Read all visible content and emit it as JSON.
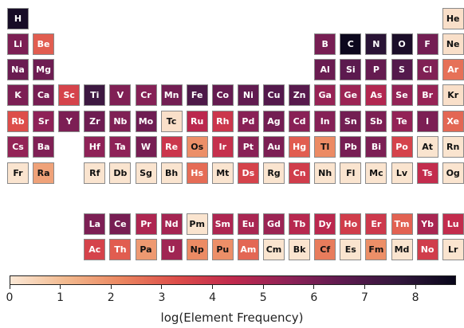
{
  "chart_data": {
    "type": "heatmap",
    "title": "",
    "colorbar": {
      "label": "log(Element Frequency)",
      "min": 0,
      "max": 8.8,
      "ticks": [
        0,
        1,
        2,
        3,
        4,
        5,
        6,
        7,
        8
      ],
      "colormap": [
        "#fbe8d6",
        "#f2b98e",
        "#eb8660",
        "#dd4d4a",
        "#c0294d",
        "#8e2257",
        "#5c1a4f",
        "#32173c",
        "#08061a"
      ]
    },
    "elements": [
      {
        "symbol": "H",
        "row": 1,
        "col": 1,
        "value": 8.4
      },
      {
        "symbol": "He",
        "row": 1,
        "col": 18,
        "value": 0.2
      },
      {
        "symbol": "Li",
        "row": 2,
        "col": 1,
        "value": 5.9
      },
      {
        "symbol": "Be",
        "row": 2,
        "col": 2,
        "value": 3.0
      },
      {
        "symbol": "B",
        "row": 2,
        "col": 13,
        "value": 6.0
      },
      {
        "symbol": "C",
        "row": 2,
        "col": 14,
        "value": 8.7
      },
      {
        "symbol": "N",
        "row": 2,
        "col": 15,
        "value": 7.9
      },
      {
        "symbol": "O",
        "row": 2,
        "col": 16,
        "value": 8.3
      },
      {
        "symbol": "F",
        "row": 2,
        "col": 17,
        "value": 6.1
      },
      {
        "symbol": "Ne",
        "row": 2,
        "col": 18,
        "value": 0.2
      },
      {
        "symbol": "Na",
        "row": 3,
        "col": 1,
        "value": 6.3
      },
      {
        "symbol": "Mg",
        "row": 3,
        "col": 2,
        "value": 6.2
      },
      {
        "symbol": "Al",
        "row": 3,
        "col": 13,
        "value": 6.3
      },
      {
        "symbol": "Si",
        "row": 3,
        "col": 14,
        "value": 6.6
      },
      {
        "symbol": "P",
        "row": 3,
        "col": 15,
        "value": 6.4
      },
      {
        "symbol": "S",
        "row": 3,
        "col": 16,
        "value": 6.8
      },
      {
        "symbol": "Cl",
        "row": 3,
        "col": 17,
        "value": 5.8
      },
      {
        "symbol": "Ar",
        "row": 3,
        "col": 18,
        "value": 2.6
      },
      {
        "symbol": "K",
        "row": 4,
        "col": 1,
        "value": 5.9
      },
      {
        "symbol": "Ca",
        "row": 4,
        "col": 2,
        "value": 6.0
      },
      {
        "symbol": "Sc",
        "row": 4,
        "col": 3,
        "value": 3.6
      },
      {
        "symbol": "Ti",
        "row": 4,
        "col": 4,
        "value": 7.4
      },
      {
        "symbol": "V",
        "row": 4,
        "col": 5,
        "value": 5.8
      },
      {
        "symbol": "Cr",
        "row": 4,
        "col": 6,
        "value": 5.7
      },
      {
        "symbol": "Mn",
        "row": 4,
        "col": 7,
        "value": 6.1
      },
      {
        "symbol": "Fe",
        "row": 4,
        "col": 8,
        "value": 7.0
      },
      {
        "symbol": "Co",
        "row": 4,
        "col": 9,
        "value": 6.4
      },
      {
        "symbol": "Ni",
        "row": 4,
        "col": 10,
        "value": 6.5
      },
      {
        "symbol": "Cu",
        "row": 4,
        "col": 11,
        "value": 6.8
      },
      {
        "symbol": "Zn",
        "row": 4,
        "col": 12,
        "value": 6.7
      },
      {
        "symbol": "Ga",
        "row": 4,
        "col": 13,
        "value": 5.3
      },
      {
        "symbol": "Ge",
        "row": 4,
        "col": 14,
        "value": 5.2
      },
      {
        "symbol": "As",
        "row": 4,
        "col": 15,
        "value": 4.7
      },
      {
        "symbol": "Se",
        "row": 4,
        "col": 16,
        "value": 5.4
      },
      {
        "symbol": "Br",
        "row": 4,
        "col": 17,
        "value": 5.3
      },
      {
        "symbol": "Kr",
        "row": 4,
        "col": 18,
        "value": 0.2
      },
      {
        "symbol": "Rb",
        "row": 5,
        "col": 1,
        "value": 3.3
      },
      {
        "symbol": "Sr",
        "row": 5,
        "col": 2,
        "value": 5.5
      },
      {
        "symbol": "Y",
        "row": 5,
        "col": 3,
        "value": 5.9
      },
      {
        "symbol": "Zr",
        "row": 5,
        "col": 4,
        "value": 6.2
      },
      {
        "symbol": "Nb",
        "row": 5,
        "col": 5,
        "value": 5.8
      },
      {
        "symbol": "Mo",
        "row": 5,
        "col": 6,
        "value": 6.2
      },
      {
        "symbol": "Tc",
        "row": 5,
        "col": 7,
        "value": 0.2
      },
      {
        "symbol": "Ru",
        "row": 5,
        "col": 8,
        "value": 4.5
      },
      {
        "symbol": "Rh",
        "row": 5,
        "col": 9,
        "value": 4.0
      },
      {
        "symbol": "Pd",
        "row": 5,
        "col": 10,
        "value": 5.6
      },
      {
        "symbol": "Ag",
        "row": 5,
        "col": 11,
        "value": 6.1
      },
      {
        "symbol": "Cd",
        "row": 5,
        "col": 12,
        "value": 5.6
      },
      {
        "symbol": "In",
        "row": 5,
        "col": 13,
        "value": 5.7
      },
      {
        "symbol": "Sn",
        "row": 5,
        "col": 14,
        "value": 6.1
      },
      {
        "symbol": "Sb",
        "row": 5,
        "col": 15,
        "value": 5.9
      },
      {
        "symbol": "Te",
        "row": 5,
        "col": 16,
        "value": 5.4
      },
      {
        "symbol": "I",
        "row": 5,
        "col": 17,
        "value": 5.9
      },
      {
        "symbol": "Xe",
        "row": 5,
        "col": 18,
        "value": 2.8
      },
      {
        "symbol": "Cs",
        "row": 6,
        "col": 1,
        "value": 5.4
      },
      {
        "symbol": "Ba",
        "row": 6,
        "col": 2,
        "value": 5.8
      },
      {
        "symbol": "Hf",
        "row": 6,
        "col": 4,
        "value": 5.5
      },
      {
        "symbol": "Ta",
        "row": 6,
        "col": 5,
        "value": 5.5
      },
      {
        "symbol": "W",
        "row": 6,
        "col": 6,
        "value": 6.0
      },
      {
        "symbol": "Re",
        "row": 6,
        "col": 7,
        "value": 4.0
      },
      {
        "symbol": "Os",
        "row": 6,
        "col": 8,
        "value": 2.0
      },
      {
        "symbol": "Ir",
        "row": 6,
        "col": 9,
        "value": 4.2
      },
      {
        "symbol": "Pt",
        "row": 6,
        "col": 10,
        "value": 5.6
      },
      {
        "symbol": "Au",
        "row": 6,
        "col": 11,
        "value": 5.9
      },
      {
        "symbol": "Hg",
        "row": 6,
        "col": 12,
        "value": 3.0
      },
      {
        "symbol": "Tl",
        "row": 6,
        "col": 13,
        "value": 2.1
      },
      {
        "symbol": "Pb",
        "row": 6,
        "col": 14,
        "value": 6.0
      },
      {
        "symbol": "Bi",
        "row": 6,
        "col": 15,
        "value": 5.9
      },
      {
        "symbol": "Po",
        "row": 6,
        "col": 16,
        "value": 3.6
      },
      {
        "symbol": "At",
        "row": 6,
        "col": 17,
        "value": 0.1
      },
      {
        "symbol": "Rn",
        "row": 6,
        "col": 18,
        "value": 0.1
      },
      {
        "symbol": "Fr",
        "row": 7,
        "col": 1,
        "value": 0.1
      },
      {
        "symbol": "Ra",
        "row": 7,
        "col": 2,
        "value": 1.6
      },
      {
        "symbol": "Rf",
        "row": 7,
        "col": 4,
        "value": 0.1
      },
      {
        "symbol": "Db",
        "row": 7,
        "col": 5,
        "value": 0.1
      },
      {
        "symbol": "Sg",
        "row": 7,
        "col": 6,
        "value": 0.1
      },
      {
        "symbol": "Bh",
        "row": 7,
        "col": 7,
        "value": 0.1
      },
      {
        "symbol": "Hs",
        "row": 7,
        "col": 8,
        "value": 2.7
      },
      {
        "symbol": "Mt",
        "row": 7,
        "col": 9,
        "value": 0.1
      },
      {
        "symbol": "Ds",
        "row": 7,
        "col": 10,
        "value": 3.6
      },
      {
        "symbol": "Rg",
        "row": 7,
        "col": 11,
        "value": 0.1
      },
      {
        "symbol": "Cn",
        "row": 7,
        "col": 12,
        "value": 3.8
      },
      {
        "symbol": "Nh",
        "row": 7,
        "col": 13,
        "value": 0.1
      },
      {
        "symbol": "Fl",
        "row": 7,
        "col": 14,
        "value": 0.1
      },
      {
        "symbol": "Mc",
        "row": 7,
        "col": 15,
        "value": 0.1
      },
      {
        "symbol": "Lv",
        "row": 7,
        "col": 16,
        "value": 0.1
      },
      {
        "symbol": "Ts",
        "row": 7,
        "col": 17,
        "value": 4.3
      },
      {
        "symbol": "Og",
        "row": 7,
        "col": 18,
        "value": 0.1
      },
      {
        "symbol": "La",
        "row": 9,
        "col": 4,
        "value": 5.9
      },
      {
        "symbol": "Ce",
        "row": 9,
        "col": 5,
        "value": 6.0
      },
      {
        "symbol": "Pr",
        "row": 9,
        "col": 6,
        "value": 4.8
      },
      {
        "symbol": "Nd",
        "row": 9,
        "col": 7,
        "value": 5.0
      },
      {
        "symbol": "Pm",
        "row": 9,
        "col": 8,
        "value": 0.1
      },
      {
        "symbol": "Sm",
        "row": 9,
        "col": 9,
        "value": 4.8
      },
      {
        "symbol": "Eu",
        "row": 9,
        "col": 10,
        "value": 4.9
      },
      {
        "symbol": "Gd",
        "row": 9,
        "col": 11,
        "value": 5.2
      },
      {
        "symbol": "Tb",
        "row": 9,
        "col": 12,
        "value": 4.6
      },
      {
        "symbol": "Dy",
        "row": 9,
        "col": 13,
        "value": 4.5
      },
      {
        "symbol": "Ho",
        "row": 9,
        "col": 14,
        "value": 3.8
      },
      {
        "symbol": "Er",
        "row": 9,
        "col": 15,
        "value": 3.9
      },
      {
        "symbol": "Tm",
        "row": 9,
        "col": 16,
        "value": 2.9
      },
      {
        "symbol": "Yb",
        "row": 9,
        "col": 17,
        "value": 4.9
      },
      {
        "symbol": "Lu",
        "row": 9,
        "col": 18,
        "value": 4.3
      },
      {
        "symbol": "Ac",
        "row": 10,
        "col": 4,
        "value": 3.6
      },
      {
        "symbol": "Th",
        "row": 10,
        "col": 5,
        "value": 3.0
      },
      {
        "symbol": "Pa",
        "row": 10,
        "col": 6,
        "value": 1.8
      },
      {
        "symbol": "U",
        "row": 10,
        "col": 7,
        "value": 5.1
      },
      {
        "symbol": "Np",
        "row": 10,
        "col": 8,
        "value": 2.1
      },
      {
        "symbol": "Pu",
        "row": 10,
        "col": 9,
        "value": 2.0
      },
      {
        "symbol": "Am",
        "row": 10,
        "col": 10,
        "value": 2.8
      },
      {
        "symbol": "Cm",
        "row": 10,
        "col": 11,
        "value": 0.1
      },
      {
        "symbol": "Bk",
        "row": 10,
        "col": 12,
        "value": 0.1
      },
      {
        "symbol": "Cf",
        "row": 10,
        "col": 13,
        "value": 2.4
      },
      {
        "symbol": "Es",
        "row": 10,
        "col": 14,
        "value": 0.1
      },
      {
        "symbol": "Fm",
        "row": 10,
        "col": 15,
        "value": 2.0
      },
      {
        "symbol": "Md",
        "row": 10,
        "col": 16,
        "value": 0.1
      },
      {
        "symbol": "No",
        "row": 10,
        "col": 17,
        "value": 3.8
      },
      {
        "symbol": "Lr",
        "row": 10,
        "col": 18,
        "value": 0.1
      }
    ]
  }
}
